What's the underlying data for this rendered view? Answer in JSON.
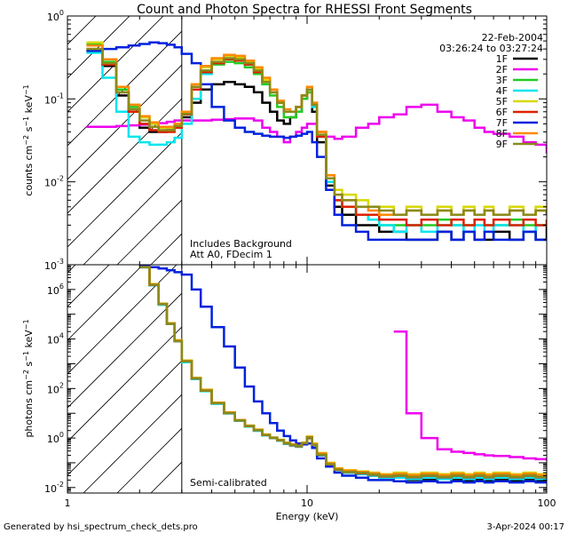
{
  "title": "Count and Photon Spectra for RHESSI Front Segments",
  "date": "22-Feb-2004",
  "time_range": "03:26:24 to 03:27:24",
  "footer_left": "Generated by hsi_spectrum_check_dets.pro",
  "footer_right": "3-Apr-2024 00:17",
  "x_axis": {
    "label": "Energy (keV)",
    "scale": "log",
    "range": [
      1,
      100
    ],
    "tick_labels": [
      {
        "value": 1,
        "text": "1"
      },
      {
        "value": 10,
        "text": "10"
      },
      {
        "value": 100,
        "text": "100"
      }
    ]
  },
  "legend": [
    {
      "name": "1F",
      "color": "#000000"
    },
    {
      "name": "2F",
      "color": "#ee00ee"
    },
    {
      "name": "3F",
      "color": "#22cc22"
    },
    {
      "name": "4F",
      "color": "#00e5ee"
    },
    {
      "name": "5F",
      "color": "#d8d800"
    },
    {
      "name": "6F",
      "color": "#dd2200"
    },
    {
      "name": "7F",
      "color": "#0022dd"
    },
    {
      "name": "8F",
      "color": "#ff8800"
    },
    {
      "name": "9F",
      "color": "#8a8a1a"
    }
  ],
  "chart_data": [
    {
      "type": "line",
      "panel": "count-spectrum",
      "ylabel": "counts cm^-2 s^-1 keV^-1",
      "yscale": "log",
      "ylim": [
        0.001,
        1
      ],
      "y_tick_labels": [
        {
          "value": 0.001,
          "base": "10",
          "exp": "-3"
        },
        {
          "value": 0.01,
          "base": "10",
          "exp": "-2"
        },
        {
          "value": 0.1,
          "base": "10",
          "exp": "-1"
        },
        {
          "value": 1,
          "base": "10",
          "exp": "0"
        }
      ],
      "annotations": [
        "Includes Background",
        "Att A0, FDecim 1"
      ],
      "shaded_region_x": [
        1,
        3
      ],
      "x": [
        1.2,
        1.4,
        1.6,
        1.8,
        2.0,
        2.2,
        2.4,
        2.6,
        2.8,
        3.0,
        3.3,
        3.6,
        4.0,
        4.5,
        5.0,
        5.5,
        6.0,
        6.5,
        7.0,
        7.5,
        8.0,
        8.5,
        9.0,
        9.5,
        10.0,
        10.5,
        11.0,
        12.0,
        13.0,
        14.0,
        16.0,
        18.0,
        20.0,
        23.0,
        26.0,
        30.0,
        35.0,
        40.0,
        45.0,
        50.0,
        55.0,
        60.0,
        70.0,
        80.0,
        90.0,
        100.0
      ],
      "series": [
        {
          "name": "1F",
          "values": [
            0.38,
            0.25,
            0.11,
            0.07,
            0.045,
            0.04,
            0.04,
            0.042,
            0.045,
            0.06,
            0.09,
            0.13,
            0.15,
            0.16,
            0.15,
            0.14,
            0.12,
            0.09,
            0.07,
            0.055,
            0.05,
            0.06,
            0.07,
            0.1,
            0.12,
            0.07,
            0.03,
            0.009,
            0.005,
            0.004,
            0.003,
            0.003,
            0.0025,
            0.0025,
            0.002,
            0.002,
            0.0025,
            0.002,
            0.0025,
            0.002,
            0.002,
            0.0025,
            0.002,
            0.0025,
            0.002,
            0.003
          ]
        },
        {
          "name": "2F",
          "values": [
            0.046,
            0.046,
            0.047,
            0.048,
            0.049,
            0.05,
            0.051,
            0.053,
            0.055,
            0.055,
            0.055,
            0.055,
            0.056,
            0.057,
            0.058,
            0.058,
            0.055,
            0.045,
            0.04,
            0.035,
            0.03,
            0.035,
            0.04,
            0.045,
            0.05,
            0.05,
            0.04,
            0.035,
            0.033,
            0.035,
            0.045,
            0.05,
            0.06,
            0.065,
            0.08,
            0.085,
            0.07,
            0.06,
            0.055,
            0.045,
            0.04,
            0.038,
            0.035,
            0.03,
            0.028,
            0.022
          ]
        },
        {
          "name": "3F",
          "values": [
            0.46,
            0.28,
            0.13,
            0.08,
            0.06,
            0.05,
            0.045,
            0.045,
            0.05,
            0.07,
            0.14,
            0.22,
            0.26,
            0.28,
            0.27,
            0.24,
            0.2,
            0.15,
            0.11,
            0.08,
            0.06,
            0.06,
            0.07,
            0.1,
            0.12,
            0.08,
            0.035,
            0.01,
            0.006,
            0.005,
            0.004,
            0.0035,
            0.003,
            0.003,
            0.003,
            0.003,
            0.0035,
            0.003,
            0.003,
            0.0035,
            0.003,
            0.003,
            0.0035,
            0.003,
            0.003,
            0.0035
          ]
        },
        {
          "name": "4F",
          "values": [
            0.36,
            0.18,
            0.07,
            0.035,
            0.03,
            0.028,
            0.028,
            0.03,
            0.034,
            0.05,
            0.1,
            0.2,
            0.27,
            0.3,
            0.29,
            0.26,
            0.22,
            0.17,
            0.12,
            0.09,
            0.07,
            0.07,
            0.08,
            0.11,
            0.13,
            0.08,
            0.035,
            0.01,
            0.006,
            0.005,
            0.004,
            0.0035,
            0.003,
            0.0025,
            0.003,
            0.0025,
            0.003,
            0.003,
            0.0025,
            0.003,
            0.0025,
            0.003,
            0.003,
            0.0025,
            0.003,
            0.003
          ]
        },
        {
          "name": "5F",
          "values": [
            0.48,
            0.3,
            0.14,
            0.085,
            0.06,
            0.05,
            0.045,
            0.045,
            0.05,
            0.07,
            0.15,
            0.24,
            0.3,
            0.33,
            0.32,
            0.28,
            0.23,
            0.17,
            0.12,
            0.09,
            0.07,
            0.07,
            0.08,
            0.11,
            0.14,
            0.09,
            0.04,
            0.012,
            0.008,
            0.007,
            0.006,
            0.005,
            0.005,
            0.004,
            0.005,
            0.004,
            0.005,
            0.004,
            0.005,
            0.004,
            0.005,
            0.004,
            0.005,
            0.004,
            0.005,
            0.005
          ]
        },
        {
          "name": "6F",
          "values": [
            0.4,
            0.26,
            0.12,
            0.07,
            0.05,
            0.042,
            0.04,
            0.04,
            0.045,
            0.065,
            0.13,
            0.21,
            0.27,
            0.3,
            0.29,
            0.26,
            0.21,
            0.16,
            0.12,
            0.09,
            0.07,
            0.07,
            0.08,
            0.11,
            0.13,
            0.085,
            0.035,
            0.011,
            0.006,
            0.005,
            0.004,
            0.004,
            0.0035,
            0.0035,
            0.003,
            0.0035,
            0.003,
            0.0035,
            0.003,
            0.0035,
            0.003,
            0.0035,
            0.003,
            0.0035,
            0.003,
            0.0035
          ]
        },
        {
          "name": "7F",
          "values": [
            0.38,
            0.4,
            0.42,
            0.44,
            0.46,
            0.48,
            0.47,
            0.45,
            0.42,
            0.35,
            0.27,
            0.15,
            0.08,
            0.055,
            0.045,
            0.04,
            0.038,
            0.036,
            0.035,
            0.035,
            0.034,
            0.035,
            0.036,
            0.038,
            0.04,
            0.03,
            0.02,
            0.008,
            0.004,
            0.003,
            0.0025,
            0.002,
            0.002,
            0.002,
            0.002,
            0.002,
            0.0025,
            0.002,
            0.0025,
            0.002,
            0.0025,
            0.002,
            0.002,
            0.0025,
            0.002,
            0.002
          ]
        },
        {
          "name": "8F",
          "values": [
            0.44,
            0.3,
            0.14,
            0.085,
            0.062,
            0.052,
            0.046,
            0.046,
            0.05,
            0.07,
            0.15,
            0.25,
            0.31,
            0.34,
            0.33,
            0.29,
            0.24,
            0.18,
            0.13,
            0.095,
            0.075,
            0.07,
            0.08,
            0.11,
            0.14,
            0.09,
            0.04,
            0.012,
            0.007,
            0.006,
            0.005,
            0.0045,
            0.004,
            0.004,
            0.0045,
            0.004,
            0.0045,
            0.004,
            0.0045,
            0.004,
            0.0045,
            0.004,
            0.0045,
            0.004,
            0.0045,
            0.004
          ]
        },
        {
          "name": "9F",
          "values": [
            0.4,
            0.27,
            0.12,
            0.075,
            0.055,
            0.046,
            0.042,
            0.042,
            0.047,
            0.066,
            0.14,
            0.22,
            0.28,
            0.31,
            0.3,
            0.27,
            0.22,
            0.16,
            0.12,
            0.09,
            0.07,
            0.07,
            0.08,
            0.11,
            0.13,
            0.085,
            0.037,
            0.011,
            0.007,
            0.006,
            0.005,
            0.005,
            0.0045,
            0.004,
            0.0045,
            0.004,
            0.0045,
            0.004,
            0.0045,
            0.004,
            0.0045,
            0.004,
            0.0045,
            0.004,
            0.0045,
            0.004
          ]
        }
      ]
    },
    {
      "type": "line",
      "panel": "photon-spectrum",
      "ylabel": "photons cm^-2 s^-1 keV^-1",
      "yscale": "log",
      "ylim": [
        0.006,
        10000000
      ],
      "y_tick_labels": [
        {
          "value": 0.01,
          "base": "10",
          "exp": "-2"
        },
        {
          "value": 1,
          "base": "10",
          "exp": "0"
        },
        {
          "value": 100,
          "base": "10",
          "exp": "2"
        },
        {
          "value": 10000,
          "base": "10",
          "exp": "4"
        },
        {
          "value": 1000000,
          "base": "10",
          "exp": "6"
        }
      ],
      "annotations": [
        "Semi-calibrated"
      ],
      "shaded_region_x": [
        1,
        3
      ],
      "x": [
        2.0,
        2.2,
        2.4,
        2.6,
        2.8,
        3.0,
        3.3,
        3.6,
        4.0,
        4.5,
        5.0,
        5.5,
        6.0,
        6.5,
        7.0,
        7.5,
        8.0,
        8.5,
        9.0,
        9.5,
        10.0,
        10.5,
        11.0,
        12.0,
        13.0,
        14.0,
        16.0,
        18.0,
        20.0,
        23.0,
        26.0,
        30.0,
        35.0,
        40.0,
        45.0,
        50.0,
        55.0,
        60.0,
        70.0,
        80.0,
        90.0,
        100.0
      ],
      "series": [
        {
          "name": "1F",
          "values": [
            8000000,
            1500000,
            250000,
            40000,
            8000,
            1200,
            250,
            80,
            25,
            10,
            5,
            3,
            2,
            1.3,
            1,
            0.8,
            0.6,
            0.5,
            0.45,
            0.6,
            1.0,
            0.5,
            0.2,
            0.08,
            0.05,
            0.04,
            0.035,
            0.03,
            0.025,
            0.025,
            0.02,
            0.02,
            0.022,
            0.02,
            0.018,
            0.02,
            0.018,
            0.02,
            0.018,
            0.02,
            0.018,
            0.02
          ]
        },
        {
          "name": "2F",
          "values": [
            null,
            null,
            null,
            null,
            null,
            null,
            null,
            null,
            null,
            null,
            null,
            null,
            null,
            null,
            null,
            null,
            null,
            null,
            null,
            null,
            null,
            null,
            null,
            null,
            null,
            null,
            null,
            null,
            null,
            20000,
            10,
            1.0,
            0.35,
            0.28,
            0.25,
            0.22,
            0.2,
            0.19,
            0.17,
            0.15,
            0.14,
            0.12
          ]
        },
        {
          "name": "3F",
          "values": [
            8000000,
            1600000,
            260000,
            42000,
            8500,
            1300,
            260,
            85,
            26,
            10.5,
            5.2,
            3.1,
            2.1,
            1.35,
            1.02,
            0.82,
            0.62,
            0.52,
            0.47,
            0.62,
            1.1,
            0.55,
            0.22,
            0.09,
            0.055,
            0.045,
            0.04,
            0.035,
            0.03,
            0.03,
            0.028,
            0.03,
            0.028,
            0.03,
            0.028,
            0.03,
            0.028,
            0.03,
            0.028,
            0.03,
            0.028,
            0.03
          ]
        },
        {
          "name": "4F",
          "values": [
            7800000,
            1500000,
            240000,
            40000,
            8000,
            1150,
            240,
            78,
            24,
            9.8,
            4.9,
            2.9,
            1.95,
            1.28,
            0.98,
            0.78,
            0.58,
            0.49,
            0.44,
            0.6,
            1.05,
            0.5,
            0.2,
            0.08,
            0.05,
            0.04,
            0.035,
            0.03,
            0.025,
            0.025,
            0.022,
            0.025,
            0.022,
            0.025,
            0.022,
            0.025,
            0.022,
            0.025,
            0.022,
            0.025,
            0.022,
            0.025
          ]
        },
        {
          "name": "5F",
          "values": [
            8200000,
            1650000,
            270000,
            44000,
            9000,
            1350,
            270,
            90,
            27,
            11,
            5.4,
            3.2,
            2.2,
            1.4,
            1.05,
            0.85,
            0.65,
            0.55,
            0.5,
            0.65,
            1.15,
            0.6,
            0.25,
            0.1,
            0.06,
            0.05,
            0.045,
            0.04,
            0.035,
            0.04,
            0.035,
            0.04,
            0.035,
            0.04,
            0.035,
            0.04,
            0.035,
            0.04,
            0.035,
            0.04,
            0.035,
            0.04
          ]
        },
        {
          "name": "6F",
          "values": [
            8000000,
            1550000,
            255000,
            41000,
            8200,
            1250,
            255,
            82,
            25.5,
            10.2,
            5.1,
            3.05,
            2.05,
            1.32,
            1.01,
            0.81,
            0.61,
            0.51,
            0.46,
            0.61,
            1.05,
            0.52,
            0.21,
            0.085,
            0.052,
            0.042,
            0.038,
            0.033,
            0.028,
            0.03,
            0.026,
            0.03,
            0.026,
            0.03,
            0.026,
            0.03,
            0.026,
            0.03,
            0.026,
            0.03,
            0.026,
            0.03
          ]
        },
        {
          "name": "7F",
          "values": [
            9000000,
            8000000,
            7000000,
            6000000,
            5000000,
            4000000,
            1000000,
            200000,
            30000,
            5000,
            700,
            120,
            30,
            10,
            4,
            2,
            1.2,
            0.8,
            0.6,
            0.55,
            0.6,
            0.4,
            0.15,
            0.07,
            0.04,
            0.03,
            0.025,
            0.02,
            0.02,
            0.018,
            0.016,
            0.018,
            0.016,
            0.018,
            0.016,
            0.018,
            0.016,
            0.018,
            0.016,
            0.018,
            0.016,
            0.018
          ]
        },
        {
          "name": "8F",
          "values": [
            8100000,
            1620000,
            265000,
            43000,
            8800,
            1320,
            265,
            88,
            26.5,
            10.8,
            5.3,
            3.15,
            2.15,
            1.38,
            1.04,
            0.84,
            0.64,
            0.54,
            0.49,
            0.64,
            1.12,
            0.58,
            0.24,
            0.095,
            0.058,
            0.048,
            0.043,
            0.038,
            0.033,
            0.036,
            0.032,
            0.036,
            0.032,
            0.036,
            0.032,
            0.036,
            0.032,
            0.036,
            0.032,
            0.036,
            0.032,
            0.036
          ]
        },
        {
          "name": "9F",
          "values": [
            7900000,
            1560000,
            258000,
            41500,
            8300,
            1260,
            258,
            83,
            25.8,
            10.3,
            5.15,
            3.08,
            2.08,
            1.33,
            1.02,
            0.82,
            0.62,
            0.52,
            0.47,
            0.62,
            1.06,
            0.53,
            0.215,
            0.087,
            0.053,
            0.043,
            0.039,
            0.034,
            0.029,
            0.031,
            0.027,
            0.031,
            0.027,
            0.031,
            0.027,
            0.031,
            0.027,
            0.031,
            0.027,
            0.031,
            0.027,
            0.031
          ]
        }
      ]
    }
  ]
}
